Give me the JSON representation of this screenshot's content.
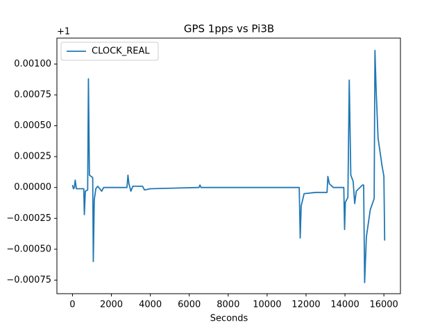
{
  "chart_data": {
    "type": "line",
    "title": "GPS 1pps vs Pi3B",
    "xlabel": "Seconds",
    "y_offset_label": "+1",
    "x": [
      0,
      50,
      100,
      140,
      200,
      580,
      610,
      660,
      780,
      820,
      870,
      1040,
      1070,
      1120,
      1200,
      1300,
      1500,
      1600,
      2800,
      2850,
      2900,
      3000,
      3100,
      3600,
      3700,
      4000,
      6500,
      6550,
      6600,
      11650,
      11700,
      11750,
      11900,
      12500,
      13080,
      13120,
      13200,
      13400,
      13940,
      13980,
      14020,
      14150,
      14220,
      14300,
      14420,
      14500,
      14580,
      14900,
      14960,
      15010,
      15100,
      15300,
      15500,
      15540,
      15600,
      15700,
      15900,
      16000,
      16040
    ],
    "series": [
      {
        "name": "CLOCK_REAL",
        "color": "#1f77b4",
        "values": [
          2e-05,
          -1e-05,
          0,
          6e-05,
          -1e-05,
          -1e-05,
          -0.00022,
          -3e-05,
          -2e-05,
          0.00088,
          0.0001,
          8e-05,
          -0.0006,
          -0.0001,
          -1e-05,
          1e-05,
          -3e-05,
          0,
          0,
          0.0001,
          3e-05,
          -3e-05,
          1e-05,
          1e-05,
          -2e-05,
          -1e-05,
          0,
          2e-05,
          0,
          0,
          -0.00041,
          -0.00015,
          -5e-05,
          -4e-05,
          -4e-05,
          9e-05,
          3e-05,
          0,
          0,
          -0.00034,
          -0.00012,
          -8e-05,
          0.00087,
          0.0001,
          5e-05,
          -0.00013,
          -3e-05,
          2e-05,
          2e-05,
          -0.00077,
          -0.0004,
          -0.00018,
          -9e-05,
          0.00111,
          0.0008,
          0.0004,
          0.00018,
          9e-05,
          -0.00043
        ]
      }
    ],
    "xlim": [
      -800,
      16850
    ],
    "ylim": [
      -0.00086,
      0.00121
    ],
    "xticks": [
      0,
      2000,
      4000,
      6000,
      8000,
      10000,
      12000,
      14000,
      16000
    ],
    "yticks": [
      {
        "value": -0.00075,
        "label": "−0.00075"
      },
      {
        "value": -0.0005,
        "label": "−0.00050"
      },
      {
        "value": -0.00025,
        "label": "−0.00025"
      },
      {
        "value": 0,
        "label": "0.00000"
      },
      {
        "value": 0.00025,
        "label": "0.00025"
      },
      {
        "value": 0.0005,
        "label": "0.00050"
      },
      {
        "value": 0.00075,
        "label": "0.00075"
      },
      {
        "value": 0.001,
        "label": "0.00100"
      }
    ],
    "legend": "upper left",
    "grid": false
  }
}
